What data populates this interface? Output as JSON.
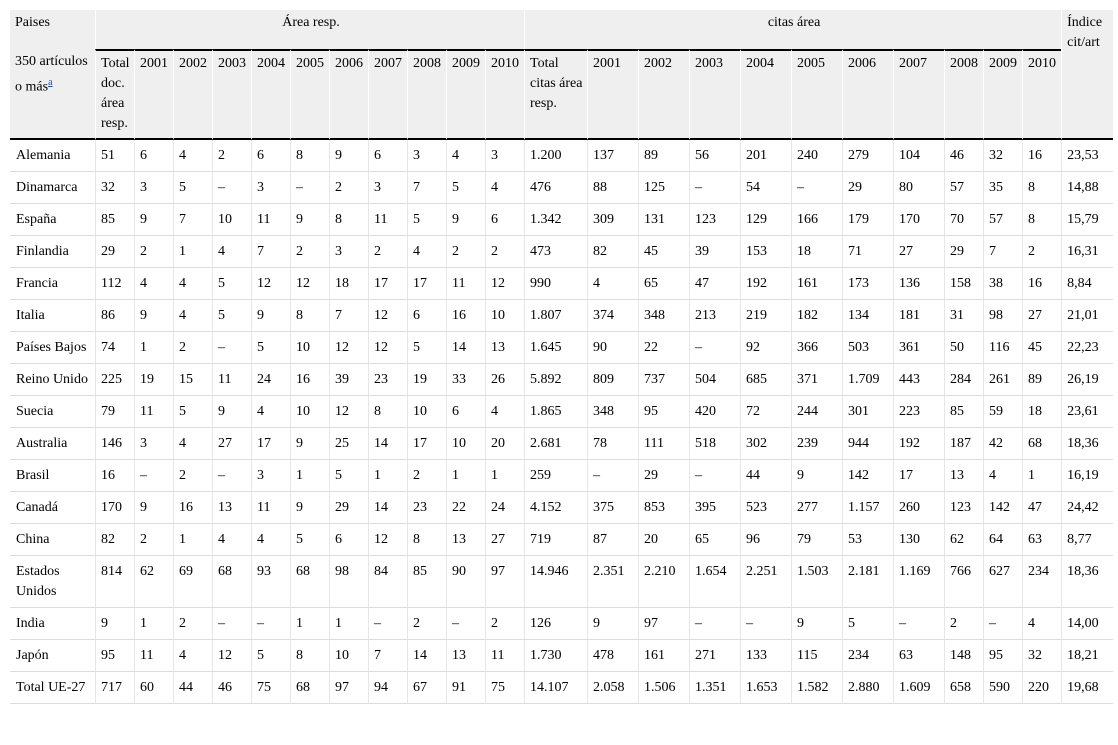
{
  "header": {
    "countries_label": "Paises",
    "area_group": "Área resp.",
    "citas_group": "citas área",
    "indice_label": "Índice cit/art",
    "sub_label": "350 artículos o más",
    "sub_footnote": "a",
    "area_total": "Total doc. área resp.",
    "citas_total": "Total citas área resp.",
    "years": [
      "2001",
      "2002",
      "2003",
      "2004",
      "2005",
      "2006",
      "2007",
      "2008",
      "2009",
      "2010"
    ]
  },
  "rows": [
    {
      "pais": "Alemania",
      "area": [
        "51",
        "6",
        "4",
        "2",
        "6",
        "8",
        "9",
        "6",
        "3",
        "4",
        "3"
      ],
      "citas": [
        "1.200",
        "137",
        "89",
        "56",
        "201",
        "240",
        "279",
        "104",
        "46",
        "32",
        "16"
      ],
      "indice": "23,53"
    },
    {
      "pais": "Dinamarca",
      "area": [
        "32",
        "3",
        "5",
        "–",
        "3",
        "–",
        "2",
        "3",
        "7",
        "5",
        "4"
      ],
      "citas": [
        "476",
        "88",
        "125",
        "–",
        "54",
        "–",
        "29",
        "80",
        "57",
        "35",
        "8"
      ],
      "indice": "14,88"
    },
    {
      "pais": "España",
      "area": [
        "85",
        "9",
        "7",
        "10",
        "11",
        "9",
        "8",
        "11",
        "5",
        "9",
        "6"
      ],
      "citas": [
        "1.342",
        "309",
        "131",
        "123",
        "129",
        "166",
        "179",
        "170",
        "70",
        "57",
        "8"
      ],
      "indice": "15,79"
    },
    {
      "pais": "Finlandia",
      "area": [
        "29",
        "2",
        "1",
        "4",
        "7",
        "2",
        "3",
        "2",
        "4",
        "2",
        "2"
      ],
      "citas": [
        "473",
        "82",
        "45",
        "39",
        "153",
        "18",
        "71",
        "27",
        "29",
        "7",
        "2"
      ],
      "indice": "16,31"
    },
    {
      "pais": "Francia",
      "area": [
        "112",
        "4",
        "4",
        "5",
        "12",
        "12",
        "18",
        "17",
        "17",
        "11",
        "12"
      ],
      "citas": [
        "990",
        "4",
        "65",
        "47",
        "192",
        "161",
        "173",
        "136",
        "158",
        "38",
        "16"
      ],
      "indice": "8,84"
    },
    {
      "pais": "Italia",
      "area": [
        "86",
        "9",
        "4",
        "5",
        "9",
        "8",
        "7",
        "12",
        "6",
        "16",
        "10"
      ],
      "citas": [
        "1.807",
        "374",
        "348",
        "213",
        "219",
        "182",
        "134",
        "181",
        "31",
        "98",
        "27"
      ],
      "indice": "21,01"
    },
    {
      "pais": "Países Bajos",
      "area": [
        "74",
        "1",
        "2",
        "–",
        "5",
        "10",
        "12",
        "12",
        "5",
        "14",
        "13"
      ],
      "citas": [
        "1.645",
        "90",
        "22",
        "–",
        "92",
        "366",
        "503",
        "361",
        "50",
        "116",
        "45"
      ],
      "indice": "22,23"
    },
    {
      "pais": "Reino Unido",
      "area": [
        "225",
        "19",
        "15",
        "11",
        "24",
        "16",
        "39",
        "23",
        "19",
        "33",
        "26"
      ],
      "citas": [
        "5.892",
        "809",
        "737",
        "504",
        "685",
        "371",
        "1.709",
        "443",
        "284",
        "261",
        "89"
      ],
      "indice": "26,19"
    },
    {
      "pais": "Suecia",
      "area": [
        "79",
        "11",
        "5",
        "9",
        "4",
        "10",
        "12",
        "8",
        "10",
        "6",
        "4"
      ],
      "citas": [
        "1.865",
        "348",
        "95",
        "420",
        "72",
        "244",
        "301",
        "223",
        "85",
        "59",
        "18"
      ],
      "indice": "23,61"
    },
    {
      "pais": "Australia",
      "area": [
        "146",
        "3",
        "4",
        "27",
        "17",
        "9",
        "25",
        "14",
        "17",
        "10",
        "20"
      ],
      "citas": [
        "2.681",
        "78",
        "111",
        "518",
        "302",
        "239",
        "944",
        "192",
        "187",
        "42",
        "68"
      ],
      "indice": "18,36"
    },
    {
      "pais": "Brasil",
      "area": [
        "16",
        "–",
        "2",
        "–",
        "3",
        "1",
        "5",
        "1",
        "2",
        "1",
        "1"
      ],
      "citas": [
        "259",
        "–",
        "29",
        "–",
        "44",
        "9",
        "142",
        "17",
        "13",
        "4",
        "1"
      ],
      "indice": "16,19"
    },
    {
      "pais": "Canadá",
      "area": [
        "170",
        "9",
        "16",
        "13",
        "11",
        "9",
        "29",
        "14",
        "23",
        "22",
        "24"
      ],
      "citas": [
        "4.152",
        "375",
        "853",
        "395",
        "523",
        "277",
        "1.157",
        "260",
        "123",
        "142",
        "47"
      ],
      "indice": "24,42"
    },
    {
      "pais": "China",
      "area": [
        "82",
        "2",
        "1",
        "4",
        "4",
        "5",
        "6",
        "12",
        "8",
        "13",
        "27"
      ],
      "citas": [
        "719",
        "87",
        "20",
        "65",
        "96",
        "79",
        "53",
        "130",
        "62",
        "64",
        "63"
      ],
      "indice": "8,77"
    },
    {
      "pais": "Estados Unidos",
      "area": [
        "814",
        "62",
        "69",
        "68",
        "93",
        "68",
        "98",
        "84",
        "85",
        "90",
        "97"
      ],
      "citas": [
        "14.946",
        "2.351",
        "2.210",
        "1.654",
        "2.251",
        "1.503",
        "2.181",
        "1.169",
        "766",
        "627",
        "234"
      ],
      "indice": "18,36"
    },
    {
      "pais": "India",
      "area": [
        "9",
        "1",
        "2",
        "–",
        "–",
        "1",
        "1",
        "–",
        "2",
        "–",
        "2"
      ],
      "citas": [
        "126",
        "9",
        "97",
        "–",
        "–",
        "9",
        "5",
        "–",
        "2",
        "–",
        "4"
      ],
      "indice": "14,00"
    },
    {
      "pais": "Japón",
      "area": [
        "95",
        "11",
        "4",
        "12",
        "5",
        "8",
        "10",
        "7",
        "14",
        "13",
        "11"
      ],
      "citas": [
        "1.730",
        "478",
        "161",
        "271",
        "133",
        "115",
        "234",
        "63",
        "148",
        "95",
        "32"
      ],
      "indice": "18,21"
    },
    {
      "pais": "Total UE-27",
      "area": [
        "717",
        "60",
        "44",
        "46",
        "75",
        "68",
        "97",
        "94",
        "67",
        "91",
        "75"
      ],
      "citas": [
        "14.107",
        "2.058",
        "1.506",
        "1.351",
        "1.653",
        "1.582",
        "2.880",
        "1.609",
        "658",
        "590",
        "220"
      ],
      "indice": "19,68"
    }
  ]
}
